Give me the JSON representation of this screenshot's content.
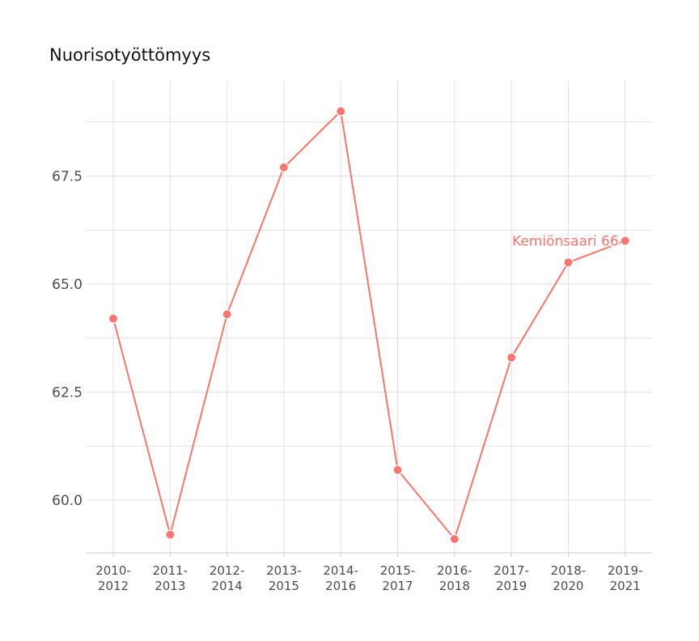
{
  "chart_data": {
    "type": "line",
    "title": "Nuorisotyöttömyys",
    "xlabel": "",
    "ylabel": "",
    "categories": [
      [
        "2010-",
        "2012"
      ],
      [
        "2011-",
        "2013"
      ],
      [
        "2012-",
        "2014"
      ],
      [
        "2013-",
        "2015"
      ],
      [
        "2014-",
        "2016"
      ],
      [
        "2015-",
        "2017"
      ],
      [
        "2016-",
        "2018"
      ],
      [
        "2017-",
        "2019"
      ],
      [
        "2018-",
        "2020"
      ],
      [
        "2019-",
        "2021"
      ]
    ],
    "series": [
      {
        "name": "Kemiönsaari",
        "values": [
          64.2,
          59.2,
          64.3,
          67.7,
          69.0,
          60.7,
          59.1,
          63.3,
          65.5,
          66.0
        ],
        "color": "#f8766d"
      }
    ],
    "end_label": "Kemiönsaari 66",
    "yticks": [
      "60.0",
      "62.5",
      "65.0",
      "67.5"
    ],
    "ytick_values": [
      60.0,
      62.5,
      65.0,
      67.5
    ],
    "ylim": [
      58.8,
      69.7
    ],
    "grid": true,
    "grid_color": "#e0e0e0"
  }
}
